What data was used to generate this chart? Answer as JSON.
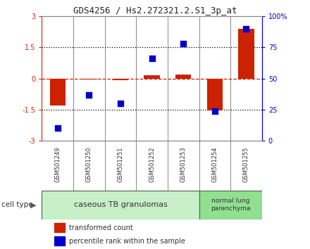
{
  "title": "GDS4256 / Hs2.272321.2.S1_3p_at",
  "samples": [
    "GSM501249",
    "GSM501250",
    "GSM501251",
    "GSM501252",
    "GSM501253",
    "GSM501254",
    "GSM501255"
  ],
  "transformed_counts": [
    -1.3,
    -0.05,
    -0.1,
    0.15,
    0.2,
    -1.55,
    2.4
  ],
  "percentile_ranks": [
    10,
    37,
    30,
    66,
    78,
    24,
    90
  ],
  "ylim_left": [
    -3,
    3
  ],
  "ylim_right": [
    0,
    100
  ],
  "yticks_left": [
    -3,
    -1.5,
    0,
    1.5,
    3
  ],
  "yticks_right": [
    0,
    25,
    50,
    75,
    100
  ],
  "ytick_labels_left": [
    "-3",
    "-1.5",
    "0",
    "1.5",
    "3"
  ],
  "ytick_labels_right": [
    "0",
    "25",
    "50",
    "75",
    "100%"
  ],
  "cell_types": [
    {
      "label": "caseous TB granulomas",
      "n_samples": 5,
      "color": "#c8f0c8"
    },
    {
      "label": "normal lung\nparenchyma",
      "n_samples": 2,
      "color": "#90e090"
    }
  ],
  "bar_color": "#cc2200",
  "scatter_color": "#0000cc",
  "bar_width": 0.5,
  "scatter_size": 40,
  "bg_color": "#ffffff",
  "plot_bg": "#ffffff",
  "zero_line_color": "#cc2200",
  "dotted_line_color": "#000000",
  "right_axis_color": "#0000cc",
  "left_axis_color": "#cc2200",
  "label_bg": "#cccccc",
  "sep_color": "#888888",
  "title_fontsize": 9,
  "tick_fontsize": 7,
  "sample_fontsize": 6,
  "legend_fontsize": 7,
  "cellttype_fontsize": 8
}
